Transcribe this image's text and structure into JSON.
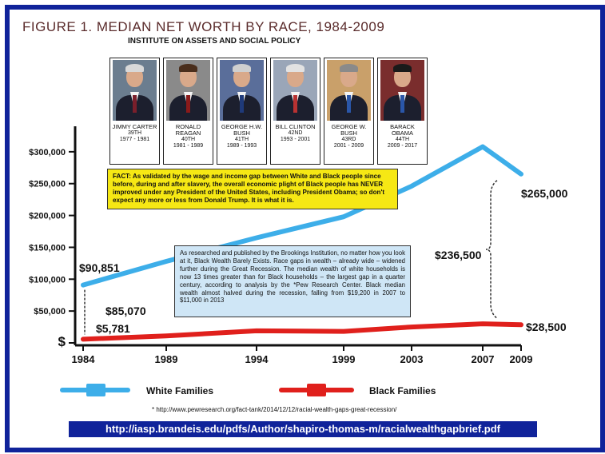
{
  "header": {
    "title": "FIGURE 1. MEDIAN NET WORTH BY RACE, 1984-2009",
    "subtitle": "INSTITUTE ON ASSETS AND SOCIAL POLICY"
  },
  "presidents": [
    {
      "name": "JIMMY CARTER",
      "number": "39TH",
      "years": "1977 - 1981",
      "hair": "#d8d8d8",
      "bg": "#6b7d8f",
      "tie": "#7a1f2b"
    },
    {
      "name": "RONALD\nREAGAN",
      "number": "40TH",
      "years": "1981 - 1989",
      "hair": "#4a2e1c",
      "bg": "#8a8a8a",
      "tie": "#8b1a1a"
    },
    {
      "name": "GEORGE H.W.\nBUSH",
      "number": "41TH",
      "years": "1989 - 1993",
      "hair": "#cfcfcf",
      "bg": "#5a6e9a",
      "tie": "#1f3a7a"
    },
    {
      "name": "BILL CLINTON",
      "number": "42ND",
      "years": "1993 - 2001",
      "hair": "#e2e2e2",
      "bg": "#9aa6b8",
      "tie": "#b83232"
    },
    {
      "name": "GEORGE W.\nBUSH",
      "number": "43RD",
      "years": "2001 - 2009",
      "hair": "#8a8a8a",
      "bg": "#c9a06a",
      "tie": "#2a56a8"
    },
    {
      "name": "BARACK\nOBAMA",
      "number": "44TH",
      "years": "2009 - 2017",
      "hair": "#1a1a1a",
      "bg": "#7a2d2d",
      "tie": "#2a56a8"
    }
  ],
  "fact_box": {
    "lead": "FACT:",
    "text": " As validated by the wage and income gap between White and Black people since before, during and after slavery, the overall economic plight of Black people has NEVER improved under any President of the United States, including President Obama; so don't expect any more or less from Donald Trump.",
    "tail": "  It is what it is."
  },
  "brookings_box": {
    "text": "As researched and published by the Brookings Institution, no matter how you look at it, Black Wealth Barely Exists. Race gaps in wealth – already wide – widened further during the Great Recession. The median wealth of white households is now 13 times greater than for Black households – the largest gap in a quarter century, according to analysis by the *Pew Research Center. Black median wealth almost halved during the recession, falling from $19,200 in 2007 to $11,000 in 2013"
  },
  "footnote": "* http://www.pewresearch.org/fact-tank/2014/12/12/racial-wealth-gaps-great-recession/",
  "source_url": "http://iasp.brandeis.edu/pdfs/Author/shapiro-thomas-m/racialwealthgapbrief.pdf",
  "chart_data": {
    "type": "line",
    "title": "",
    "xlabel": "",
    "ylabel": "",
    "x": [
      1984,
      1989,
      1994,
      1999,
      2003,
      2007,
      2009
    ],
    "ylim": [
      0,
      340000
    ],
    "y_ticks": [
      0,
      50000,
      100000,
      150000,
      200000,
      250000,
      300000
    ],
    "y_tick_labels": [
      "$",
      "$50,000",
      "$100,000",
      "$150,000",
      "$200,000",
      "$250,000",
      "$300,000"
    ],
    "x_tick_labels": [
      "1984",
      "1989",
      "1994",
      "1999",
      "2003",
      "2007",
      "2009"
    ],
    "series": [
      {
        "name": "White Families",
        "color": "#3daee9",
        "values": [
          90851,
          128000,
          165000,
          198000,
          246000,
          308000,
          265000
        ]
      },
      {
        "name": "Black Families",
        "color": "#e0201c",
        "values": [
          5781,
          11000,
          19000,
          18000,
          25000,
          30000,
          28500
        ]
      }
    ],
    "annotations": {
      "white_start": "$90,851",
      "black_start": "$5,781",
      "gap_start": "$85,070",
      "white_end": "$265,000",
      "black_end": "$28,500",
      "gap_end": "$236,500"
    },
    "legend": {
      "position": "bottom"
    }
  }
}
